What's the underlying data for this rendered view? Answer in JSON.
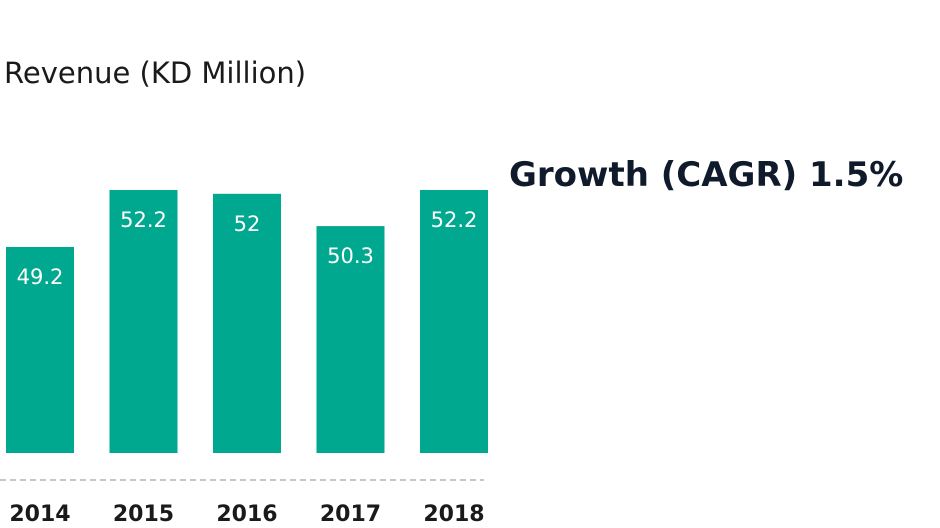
{
  "chart_data": {
    "type": "bar",
    "title": "Revenue (KD Million)",
    "categories": [
      "2014",
      "2015",
      "2016",
      "2017",
      "2018"
    ],
    "values": [
      49.2,
      52.2,
      52,
      50.3,
      52.2
    ],
    "value_labels": [
      "49.2",
      "52.2",
      "52",
      "50.3",
      "52.2"
    ],
    "annotation": "Growth (CAGR) 1.5%",
    "grid": false,
    "legend": "none",
    "colors": {
      "bar": "#00a88f",
      "bar_label": "#ffffff",
      "category_label": "#1a1a1a",
      "baseline": "#b3b3b3",
      "annotation": "#0f1a2b"
    }
  }
}
